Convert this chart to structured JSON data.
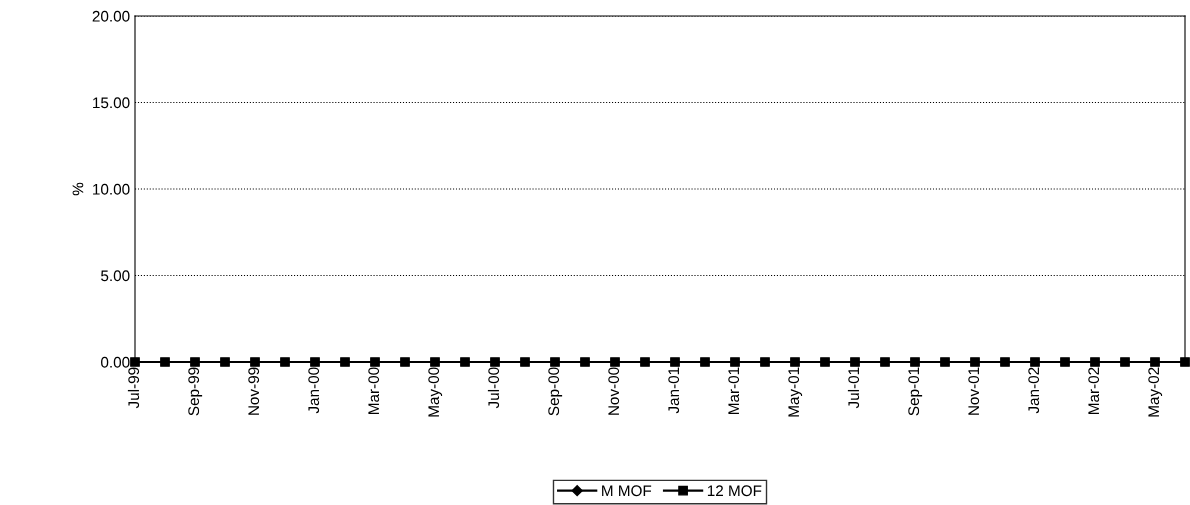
{
  "chart_data": {
    "type": "line",
    "ylabel": "%",
    "categories": [
      "Jul-99",
      null,
      "Sep-99",
      null,
      "Nov-99",
      null,
      "Jan-00",
      null,
      "Mar-00",
      null,
      "May-00",
      null,
      "Jul-00",
      null,
      "Sep-00",
      null,
      "Nov-00",
      null,
      "Jan-01",
      null,
      "Mar-01",
      null,
      "May-01",
      null,
      "Jul-01",
      null,
      "Sep-01",
      null,
      "Nov-01",
      null,
      "Jan-02",
      null,
      "Mar-02",
      null,
      "May-02",
      null
    ],
    "series": [
      {
        "name": "M MOF",
        "color": "#000000",
        "marker": "diamond",
        "values": [
          null,
          null,
          null,
          null,
          null,
          null,
          null,
          null,
          null,
          null,
          null,
          null,
          null,
          null,
          null,
          null,
          null,
          null,
          null,
          null,
          null,
          null,
          null,
          null,
          null,
          null,
          null,
          null,
          null,
          null,
          null,
          null,
          null,
          null,
          null,
          null
        ]
      },
      {
        "name": "12 MOF",
        "color": "#000000",
        "marker": "square",
        "values": [
          0,
          0,
          0,
          0,
          0,
          0,
          0,
          0,
          0,
          0,
          0,
          0,
          0,
          0,
          0,
          0,
          0,
          0,
          0,
          0,
          0,
          0,
          0,
          0,
          0,
          0,
          0,
          0,
          0,
          0,
          0,
          0,
          0,
          0,
          0,
          0
        ]
      }
    ],
    "ylim": [
      0,
      20
    ],
    "yticks": [
      {
        "value": 0,
        "label": "0.00"
      },
      {
        "value": 5,
        "label": "5.00"
      },
      {
        "value": 10,
        "label": "10.00"
      },
      {
        "value": 15,
        "label": "15.00"
      },
      {
        "value": 20,
        "label": "20.00"
      }
    ],
    "grid": "y",
    "legend": "bottom",
    "line_style": "solid"
  }
}
